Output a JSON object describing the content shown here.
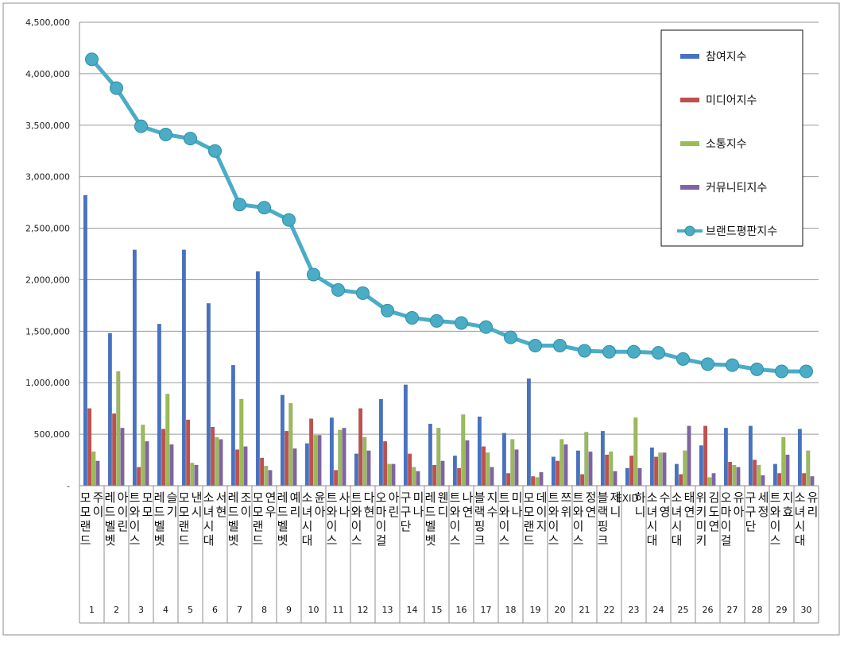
{
  "chart_data": {
    "type": "bar",
    "ylim": [
      0,
      4500000
    ],
    "yticks": [
      "4,500,000",
      "4,000,000",
      "3,500,000",
      "3,000,000",
      "2,500,000",
      "2,000,000",
      "1,500,000",
      "1,000,000",
      "500,000",
      "-"
    ],
    "grid": true,
    "legend_position": "top-right",
    "names": [
      "모모랜드 주이",
      "레드벨벳 아이린",
      "트와이스 모모",
      "레드벨벳 슬기",
      "모모랜드 낸시",
      "소녀시대 서현",
      "레드벨벳 조이",
      "모모랜드 연우",
      "레드벨벳 예리",
      "소녀시대 윤아",
      "트와이스 사나",
      "트와이스 다현",
      "오마이걸 아린",
      "구구단 미나",
      "레드벨벳 웬디",
      "트와이스 나연",
      "블랙핑크 지수",
      "트와이스 미나",
      "모모랜드 데이지",
      "트와이스 쯔위",
      "트와이스 정연",
      "블랙핑크 제니",
      "EXID 하니",
      "소녀시대 수영",
      "소녀시대 태연",
      "위키미키 김도연",
      "오마이걸 유아",
      "구구단 세정",
      "트와이스 지효",
      "소녀시대 유리"
    ],
    "ranks": [
      "1",
      "2",
      "3",
      "4",
      "5",
      "6",
      "7",
      "8",
      "9",
      "10",
      "11",
      "12",
      "13",
      "14",
      "15",
      "16",
      "17",
      "18",
      "19",
      "20",
      "21",
      "22",
      "23",
      "24",
      "25",
      "26",
      "27",
      "28",
      "29",
      "30"
    ],
    "series": [
      {
        "name": "참여지수",
        "type": "bar",
        "color": "#4572C4",
        "values": [
          2820000,
          1480000,
          2290000,
          1570000,
          2290000,
          1770000,
          1170000,
          2080000,
          880000,
          410000,
          660000,
          310000,
          840000,
          980000,
          600000,
          290000,
          670000,
          510000,
          1040000,
          280000,
          340000,
          530000,
          170000,
          370000,
          210000,
          390000,
          560000,
          580000,
          210000,
          550000
        ]
      },
      {
        "name": "미디어지수",
        "type": "bar",
        "color": "#C0504D",
        "values": [
          750000,
          700000,
          180000,
          550000,
          640000,
          570000,
          350000,
          270000,
          530000,
          650000,
          150000,
          750000,
          430000,
          310000,
          200000,
          170000,
          380000,
          120000,
          90000,
          240000,
          110000,
          300000,
          290000,
          280000,
          110000,
          580000,
          230000,
          250000,
          120000,
          120000
        ]
      },
      {
        "name": "소통지수",
        "type": "bar",
        "color": "#9BBB59",
        "values": [
          330000,
          1110000,
          590000,
          890000,
          220000,
          470000,
          840000,
          190000,
          800000,
          490000,
          540000,
          470000,
          210000,
          180000,
          560000,
          690000,
          320000,
          450000,
          80000,
          450000,
          520000,
          330000,
          660000,
          320000,
          340000,
          80000,
          200000,
          200000,
          470000,
          340000
        ]
      },
      {
        "name": "커뮤니티지수",
        "type": "bar",
        "color": "#8064A2",
        "values": [
          240000,
          560000,
          430000,
          400000,
          200000,
          450000,
          380000,
          150000,
          360000,
          490000,
          560000,
          340000,
          210000,
          140000,
          240000,
          440000,
          180000,
          350000,
          130000,
          400000,
          330000,
          140000,
          170000,
          320000,
          580000,
          120000,
          180000,
          100000,
          300000,
          90000
        ]
      },
      {
        "name": "브랜드평판지수",
        "type": "line",
        "color": "#4BACC6",
        "values": [
          4140000,
          3860000,
          3490000,
          3410000,
          3370000,
          3250000,
          2730000,
          2700000,
          2580000,
          2050000,
          1900000,
          1870000,
          1700000,
          1630000,
          1600000,
          1580000,
          1540000,
          1440000,
          1360000,
          1360000,
          1310000,
          1300000,
          1300000,
          1290000,
          1230000,
          1180000,
          1170000,
          1130000,
          1110000,
          1110000
        ]
      }
    ]
  }
}
